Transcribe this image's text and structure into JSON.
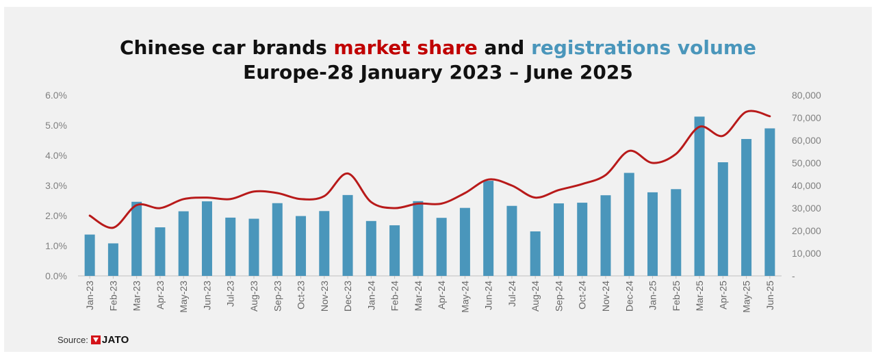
{
  "title": {
    "line1_part1": "Chinese car brands ",
    "line1_part2": "market share",
    "line1_part3": " and ",
    "line1_part4": "registrations volume",
    "line2": "Europe-28 January 2023 – June 2025"
  },
  "source": {
    "label": "Source:",
    "brand": "JATO"
  },
  "colors": {
    "bars": "#4a96bb",
    "line": "#b81a1a",
    "title_red": "#c00000",
    "title_blue": "#4a96bb"
  },
  "chart_data": {
    "type": "bar",
    "categories": [
      "Jan-23",
      "Feb-23",
      "Mar-23",
      "Apr-23",
      "May-23",
      "Jun-23",
      "Jul-23",
      "Aug-23",
      "Sep-23",
      "Oct-23",
      "Nov-23",
      "Dec-23",
      "Jan-24",
      "Feb-24",
      "Mar-24",
      "Apr-24",
      "May-24",
      "Jun-24",
      "Jul-24",
      "Aug-24",
      "Sep-24",
      "Oct-24",
      "Nov-24",
      "Dec-24",
      "Jan-25",
      "Feb-25",
      "Mar-25",
      "Apr-25",
      "May-25",
      "Jun-25"
    ],
    "series": [
      {
        "type": "bar",
        "axis": "right",
        "values": [
          18300,
          14400,
          32800,
          21500,
          28600,
          33000,
          25800,
          25300,
          32200,
          26500,
          28700,
          35800,
          24300,
          22400,
          33100,
          25700,
          30100,
          42100,
          31000,
          19700,
          32100,
          32400,
          35700,
          45600,
          37000,
          38400,
          70500,
          50300,
          60600,
          65300
        ]
      },
      {
        "type": "line",
        "axis": "left",
        "values": [
          2.0,
          1.6,
          2.35,
          2.25,
          2.55,
          2.6,
          2.55,
          2.8,
          2.75,
          2.55,
          2.65,
          3.4,
          2.45,
          2.25,
          2.4,
          2.4,
          2.75,
          3.2,
          3.0,
          2.6,
          2.85,
          3.05,
          3.35,
          4.15,
          3.75,
          4.05,
          4.95,
          4.65,
          5.45,
          5.3
        ]
      }
    ],
    "left_axis": {
      "min": 0,
      "max": 6,
      "ticks": [
        "0.0%",
        "1.0%",
        "2.0%",
        "3.0%",
        "4.0%",
        "5.0%",
        "6.0%"
      ]
    },
    "right_axis": {
      "min": 0,
      "max": 80000,
      "ticks": [
        "-",
        "10,000",
        "20,000",
        "30,000",
        "40,000",
        "50,000",
        "60,000",
        "70,000",
        "80,000"
      ]
    },
    "grid": false
  }
}
